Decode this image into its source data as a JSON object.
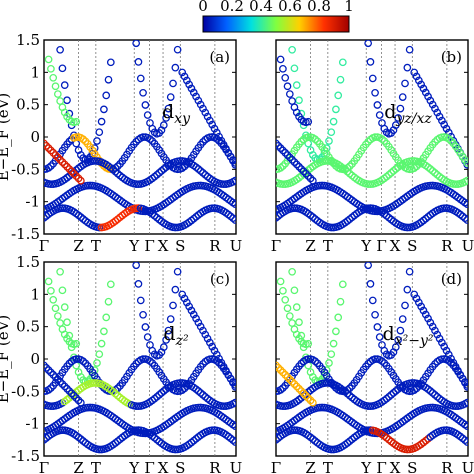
{
  "colorbar": {
    "ticks": [
      "0",
      "0.2",
      "0.4",
      "0.6",
      "0.8",
      "1"
    ],
    "colors": [
      "#0000a0",
      "#0060ff",
      "#00e0e0",
      "#80ff40",
      "#ffd000",
      "#ff3000",
      "#a00000"
    ]
  },
  "chart_data": [
    {
      "type": "scatter",
      "panel_label": "(a)",
      "orbital": "d",
      "orbital_sub": "xy",
      "ylabel": "E−E_F (eV)",
      "ylim": [
        -1.5,
        1.5
      ],
      "yticks": [
        "1.5",
        "1",
        "0.5",
        "0",
        "-0.5",
        "-1",
        "-1.5"
      ],
      "xticks": [
        "Γ",
        "Z",
        "T",
        "Y",
        "Γ",
        "X",
        "S",
        "R",
        "U"
      ]
    },
    {
      "type": "scatter",
      "panel_label": "(b)",
      "orbital": "d",
      "orbital_sub": "yz/xz",
      "ylim": [
        -1.5,
        1.5
      ],
      "xticks": [
        "Γ",
        "Z",
        "T",
        "Y",
        "Γ",
        "X",
        "S",
        "R",
        "U"
      ]
    },
    {
      "type": "scatter",
      "panel_label": "(c)",
      "orbital": "d",
      "orbital_sub": "z²",
      "ylabel": "E−E_F (eV)",
      "ylim": [
        -1.5,
        1.5
      ],
      "yticks": [
        "1.5",
        "1",
        "0.5",
        "0",
        "-0.5",
        "-1",
        "-1.5"
      ],
      "xticks": [
        "Γ",
        "Z",
        "T",
        "Y",
        "Γ",
        "X",
        "S",
        "R",
        "U"
      ]
    },
    {
      "type": "scatter",
      "panel_label": "(d)",
      "orbital": "d",
      "orbital_sub": "x²−y²",
      "ylim": [
        -1.5,
        1.5
      ],
      "xticks": [
        "Γ",
        "Z",
        "T",
        "Y",
        "Γ",
        "X",
        "S",
        "R",
        "U"
      ]
    }
  ]
}
